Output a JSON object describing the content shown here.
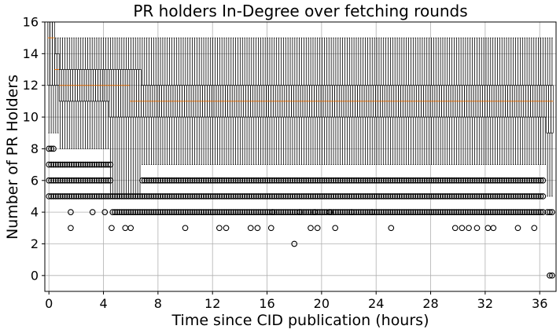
{
  "chart_data": {
    "type": "boxplot",
    "title": "PR holders In-Degree over fetching rounds",
    "xlabel": "Time since CID publication (hours)",
    "ylabel": "Number of PR Holders",
    "xlim": [
      -0.3,
      37.2
    ],
    "ylim": [
      -1,
      16
    ],
    "x_ticks": [
      0,
      4,
      8,
      12,
      16,
      20,
      24,
      28,
      32,
      36
    ],
    "y_ticks": [
      0,
      2,
      4,
      6,
      8,
      10,
      12,
      14,
      16
    ],
    "grid": true,
    "box_interval_hours": 0.167,
    "median_color": "#ff7f0e",
    "box_color": "#000000",
    "grid_color": "#b0b0b0",
    "segments": [
      {
        "x_start": 0.0,
        "x_end": 0.4,
        "q1": 12,
        "q3": 16,
        "median": 15,
        "whisker_low": 9,
        "whisker_high": 16
      },
      {
        "x_start": 0.4,
        "x_end": 0.8,
        "q1": 12,
        "q3": 14,
        "median": 13,
        "whisker_low": 9,
        "whisker_high": 15
      },
      {
        "x_start": 0.8,
        "x_end": 1.2,
        "q1": 11,
        "q3": 13,
        "median": 12,
        "whisker_low": 8,
        "whisker_high": 15
      },
      {
        "x_start": 1.2,
        "x_end": 4.5,
        "q1": 11,
        "q3": 13,
        "median": 12,
        "whisker_low": 8,
        "whisker_high": 15
      },
      {
        "x_start": 4.5,
        "x_end": 6.0,
        "q1": 10,
        "q3": 13,
        "median": 12,
        "whisker_low": 5,
        "whisker_high": 15
      },
      {
        "x_start": 6.0,
        "x_end": 6.8,
        "q1": 10,
        "q3": 13,
        "median": 11,
        "whisker_low": 5,
        "whisker_high": 15
      },
      {
        "x_start": 6.8,
        "x_end": 35.8,
        "q1": 10,
        "q3": 12,
        "median": 11,
        "whisker_low": 7,
        "whisker_high": 15
      },
      {
        "x_start": 35.8,
        "x_end": 36.5,
        "q1": 10,
        "q3": 12,
        "median": 11,
        "whisker_low": 7,
        "whisker_high": 15
      },
      {
        "x_start": 36.5,
        "x_end": 37.0,
        "q1": 9,
        "q3": 12,
        "median": 11,
        "whisker_low": 5,
        "whisker_high": 15
      }
    ],
    "outlier_bands": [
      {
        "x_start": 0.0,
        "x_end": 0.4,
        "values": [
          5,
          6,
          7,
          8
        ]
      },
      {
        "x_start": 0.4,
        "x_end": 4.6,
        "values": [
          5,
          6,
          7
        ]
      },
      {
        "x_start": 4.6,
        "x_end": 6.8,
        "values": [
          4,
          5
        ]
      },
      {
        "x_start": 6.8,
        "x_end": 36.4,
        "values": [
          4,
          5,
          6
        ]
      },
      {
        "x_start": 36.5,
        "x_end": 37.0,
        "values": [
          4
        ]
      }
    ],
    "zero_outliers": {
      "x_start": 36.6,
      "x_end": 37.0,
      "value": 0
    },
    "sparse_outliers": [
      {
        "x": 1.6,
        "y": 4
      },
      {
        "x": 1.6,
        "y": 3
      },
      {
        "x": 3.2,
        "y": 4
      },
      {
        "x": 4.1,
        "y": 4
      },
      {
        "x": 4.6,
        "y": 3
      },
      {
        "x": 5.6,
        "y": 3
      },
      {
        "x": 6.0,
        "y": 3
      },
      {
        "x": 10.0,
        "y": 3
      },
      {
        "x": 12.5,
        "y": 3
      },
      {
        "x": 13.0,
        "y": 3
      },
      {
        "x": 14.8,
        "y": 3
      },
      {
        "x": 15.3,
        "y": 3
      },
      {
        "x": 16.3,
        "y": 3
      },
      {
        "x": 18.0,
        "y": 2
      },
      {
        "x": 19.2,
        "y": 3
      },
      {
        "x": 19.7,
        "y": 3
      },
      {
        "x": 21.0,
        "y": 3
      },
      {
        "x": 25.1,
        "y": 3
      },
      {
        "x": 29.8,
        "y": 3
      },
      {
        "x": 30.3,
        "y": 3
      },
      {
        "x": 30.8,
        "y": 3
      },
      {
        "x": 31.4,
        "y": 3
      },
      {
        "x": 32.2,
        "y": 3
      },
      {
        "x": 32.6,
        "y": 3
      },
      {
        "x": 34.4,
        "y": 3
      },
      {
        "x": 35.6,
        "y": 3
      },
      {
        "x": 16.4,
        "y": 4
      },
      {
        "x": 18.4,
        "y": 4
      },
      {
        "x": 19.5,
        "y": 4
      },
      {
        "x": 20.6,
        "y": 4
      },
      {
        "x": 22.2,
        "y": 4
      },
      {
        "x": 23.7,
        "y": 4
      }
    ]
  }
}
